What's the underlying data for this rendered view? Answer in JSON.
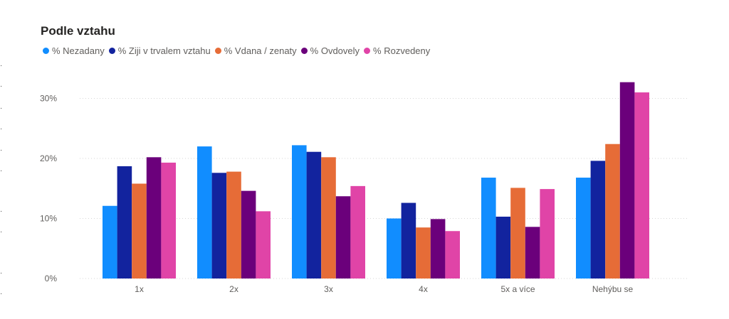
{
  "chart_data": {
    "type": "bar",
    "title": "Podle vztahu",
    "categories": [
      "1x",
      "2x",
      "3x",
      "4x",
      "5x a více",
      "Nehýbu se"
    ],
    "series": [
      {
        "name": "% Nezadany",
        "color": "#118DFF",
        "values": [
          12.1,
          22.0,
          22.2,
          10.0,
          16.8,
          16.8
        ]
      },
      {
        "name": "% Ziji v trvalem vztahu",
        "color": "#12239E",
        "values": [
          18.7,
          17.6,
          21.1,
          12.6,
          10.3,
          19.6
        ]
      },
      {
        "name": "% Vdana / zenaty",
        "color": "#E66C37",
        "values": [
          15.8,
          17.8,
          20.2,
          8.5,
          15.1,
          22.4
        ]
      },
      {
        "name": "% Ovdovely",
        "color": "#6B007B",
        "values": [
          20.2,
          14.6,
          13.7,
          9.9,
          8.6,
          32.7
        ]
      },
      {
        "name": "% Rozvedeny",
        "color": "#E044A7",
        "values": [
          19.3,
          11.2,
          15.4,
          7.9,
          14.9,
          31.0
        ]
      }
    ],
    "yticks": [
      "0%",
      "10%",
      "20%",
      "30%"
    ],
    "ylim": [
      0,
      35
    ],
    "grid": true,
    "legend_position": "top-left"
  }
}
